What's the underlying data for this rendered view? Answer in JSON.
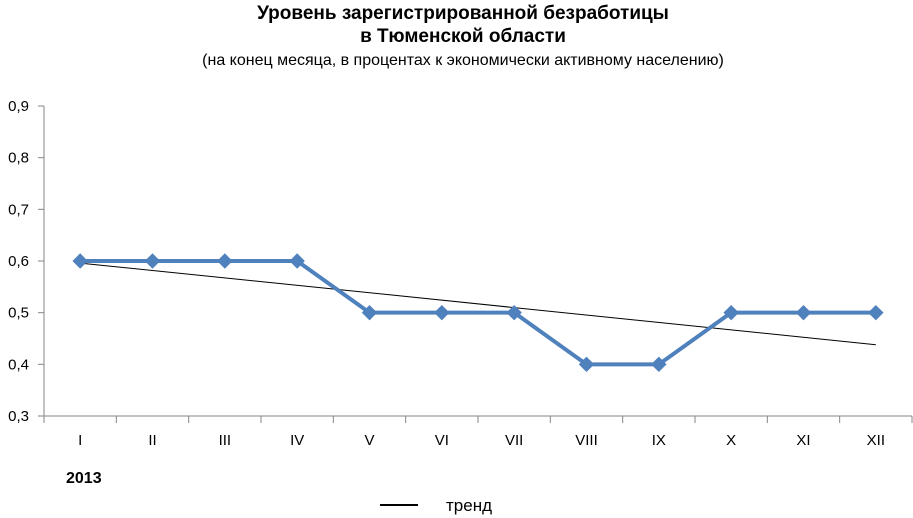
{
  "chart_data": {
    "type": "line",
    "title_line1": "Уровень зарегистрированной безработицы",
    "title_line2": "в Тюменской области",
    "subtitle": "(на конец месяца, в процентах к экономически активному населению)",
    "categories": [
      "I",
      "II",
      "III",
      "IV",
      "V",
      "VI",
      "VII",
      "VIII",
      "IX",
      "X",
      "XI",
      "XII"
    ],
    "category_group_label": "2013",
    "series": [
      {
        "values": [
          0.6,
          0.6,
          0.6,
          0.6,
          0.5,
          0.5,
          0.5,
          0.4,
          0.4,
          0.5,
          0.5,
          0.5
        ],
        "color": "#4F81BD",
        "marker": "diamond"
      }
    ],
    "trendline": {
      "name": "тренд",
      "type": "linear",
      "start": 0.596,
      "end": 0.438,
      "color": "#000000"
    },
    "yticks": [
      "0,3",
      "0,4",
      "0,5",
      "0,6",
      "0,7",
      "0,8",
      "0,9"
    ],
    "ylim": [
      0.3,
      0.9
    ],
    "grid": false,
    "legend_position": "bottom"
  }
}
